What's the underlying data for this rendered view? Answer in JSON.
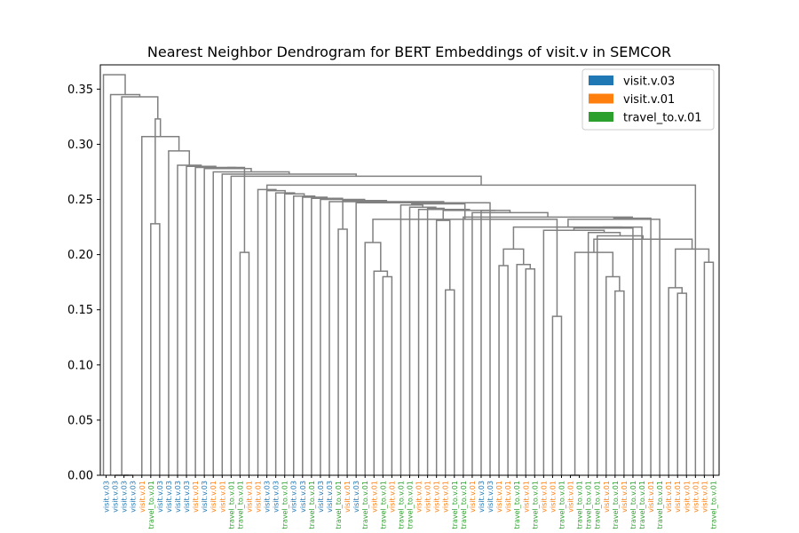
{
  "chart_data": {
    "type": "dendrogram",
    "title": "Nearest Neighbor Dendrogram for BERT Embeddings of visit.v in SEMCOR",
    "xlabel": "",
    "ylabel": "",
    "ylim": [
      0,
      0.372
    ],
    "yticks": [
      "0.00",
      "0.05",
      "0.10",
      "0.15",
      "0.20",
      "0.25",
      "0.30",
      "0.35"
    ],
    "ytick_values": [
      0,
      0.05,
      0.1,
      0.15,
      0.2,
      0.25,
      0.3,
      0.35
    ],
    "grid": false,
    "legend_position": "top-right",
    "legend": [
      {
        "name": "visit.v.03",
        "color": "#1f77b4"
      },
      {
        "name": "visit.v.01",
        "color": "#ff7f0e"
      },
      {
        "name": "travel_to.v.01",
        "color": "#2ca02c"
      }
    ],
    "link_color": "#808080",
    "leaves": [
      {
        "label": "visit.v.03",
        "sense": 0
      },
      {
        "label": "visit.v.03",
        "sense": 0
      },
      {
        "label": "visit.v.03",
        "sense": 0
      },
      {
        "label": "visit.v.03",
        "sense": 0
      },
      {
        "label": "visit.v.01",
        "sense": 1
      },
      {
        "label": "travel_to.v.01",
        "sense": 2
      },
      {
        "label": "visit.v.03",
        "sense": 0
      },
      {
        "label": "visit.v.03",
        "sense": 0
      },
      {
        "label": "visit.v.03",
        "sense": 0
      },
      {
        "label": "visit.v.03",
        "sense": 0
      },
      {
        "label": "visit.v.01",
        "sense": 1
      },
      {
        "label": "visit.v.03",
        "sense": 0
      },
      {
        "label": "visit.v.01",
        "sense": 1
      },
      {
        "label": "visit.v.01",
        "sense": 1
      },
      {
        "label": "travel_to.v.01",
        "sense": 2
      },
      {
        "label": "travel_to.v.01",
        "sense": 2
      },
      {
        "label": "visit.v.01",
        "sense": 1
      },
      {
        "label": "visit.v.01",
        "sense": 1
      },
      {
        "label": "visit.v.03",
        "sense": 0
      },
      {
        "label": "visit.v.03",
        "sense": 0
      },
      {
        "label": "travel_to.v.01",
        "sense": 2
      },
      {
        "label": "visit.v.03",
        "sense": 0
      },
      {
        "label": "visit.v.03",
        "sense": 0
      },
      {
        "label": "travel_to.v.01",
        "sense": 2
      },
      {
        "label": "visit.v.03",
        "sense": 0
      },
      {
        "label": "visit.v.03",
        "sense": 0
      },
      {
        "label": "travel_to.v.01",
        "sense": 2
      },
      {
        "label": "visit.v.01",
        "sense": 1
      },
      {
        "label": "visit.v.03",
        "sense": 0
      },
      {
        "label": "travel_to.v.01",
        "sense": 2
      },
      {
        "label": "visit.v.01",
        "sense": 1
      },
      {
        "label": "travel_to.v.01",
        "sense": 2
      },
      {
        "label": "visit.v.01",
        "sense": 1
      },
      {
        "label": "travel_to.v.01",
        "sense": 2
      },
      {
        "label": "travel_to.v.01",
        "sense": 2
      },
      {
        "label": "visit.v.01",
        "sense": 1
      },
      {
        "label": "visit.v.01",
        "sense": 1
      },
      {
        "label": "visit.v.01",
        "sense": 1
      },
      {
        "label": "visit.v.01",
        "sense": 1
      },
      {
        "label": "travel_to.v.01",
        "sense": 2
      },
      {
        "label": "travel_to.v.01",
        "sense": 2
      },
      {
        "label": "visit.v.01",
        "sense": 1
      },
      {
        "label": "visit.v.03",
        "sense": 0
      },
      {
        "label": "visit.v.03",
        "sense": 0
      },
      {
        "label": "visit.v.01",
        "sense": 1
      },
      {
        "label": "visit.v.01",
        "sense": 1
      },
      {
        "label": "travel_to.v.01",
        "sense": 2
      },
      {
        "label": "visit.v.01",
        "sense": 1
      },
      {
        "label": "travel_to.v.01",
        "sense": 2
      },
      {
        "label": "visit.v.01",
        "sense": 1
      },
      {
        "label": "visit.v.01",
        "sense": 1
      },
      {
        "label": "travel_to.v.01",
        "sense": 2
      },
      {
        "label": "visit.v.01",
        "sense": 1
      },
      {
        "label": "travel_to.v.01",
        "sense": 2
      },
      {
        "label": "travel_to.v.01",
        "sense": 2
      },
      {
        "label": "travel_to.v.01",
        "sense": 2
      },
      {
        "label": "visit.v.01",
        "sense": 1
      },
      {
        "label": "travel_to.v.01",
        "sense": 2
      },
      {
        "label": "visit.v.01",
        "sense": 1
      },
      {
        "label": "travel_to.v.01",
        "sense": 2
      },
      {
        "label": "travel_to.v.01",
        "sense": 2
      },
      {
        "label": "visit.v.01",
        "sense": 1
      },
      {
        "label": "travel_to.v.01",
        "sense": 2
      },
      {
        "label": "visit.v.01",
        "sense": 1
      },
      {
        "label": "visit.v.01",
        "sense": 1
      },
      {
        "label": "visit.v.01",
        "sense": 1
      },
      {
        "label": "visit.v.01",
        "sense": 1
      },
      {
        "label": "visit.v.01",
        "sense": 1
      },
      {
        "label": "travel_to.v.01",
        "sense": 2
      }
    ],
    "merges": [
      {
        "a": "L2",
        "b": "L3",
        "h": 0.0
      },
      {
        "a": "L1",
        "b": "M0",
        "h": 0.0
      },
      {
        "a": "L52",
        "b": "L53",
        "h": 0.0
      },
      {
        "a": "L50",
        "b": "L51",
        "h": 0.144
      },
      {
        "a": "L64",
        "b": "L65",
        "h": 0.165
      },
      {
        "a": "L38",
        "b": "L39",
        "h": 0.168
      },
      {
        "a": "L63",
        "b": "M4",
        "h": 0.17
      },
      {
        "a": "L57",
        "b": "L58",
        "h": 0.167
      },
      {
        "a": "L31",
        "b": "L32",
        "h": 0.18
      },
      {
        "a": "L56",
        "b": "M7",
        "h": 0.18
      },
      {
        "a": "L30",
        "b": "M8",
        "h": 0.185
      },
      {
        "a": "L47",
        "b": "L48",
        "h": 0.187
      },
      {
        "a": "L44",
        "b": "L45",
        "h": 0.19
      },
      {
        "a": "L46",
        "b": "M11",
        "h": 0.191
      },
      {
        "a": "L67",
        "b": "L68",
        "h": 0.193
      },
      {
        "a": "L15",
        "b": "L16",
        "h": 0.202
      },
      {
        "a": "M2",
        "b": "M9",
        "h": 0.202
      },
      {
        "a": "M6",
        "b": "M14",
        "h": 0.205
      },
      {
        "a": "M12",
        "b": "M13",
        "h": 0.205
      },
      {
        "a": "L29",
        "b": "M10",
        "h": 0.211
      },
      {
        "a": "M16",
        "b": "M17",
        "h": 0.214
      },
      {
        "a": "L55",
        "b": "M20",
        "h": 0.217
      },
      {
        "a": "L54",
        "b": "M21",
        "h": 0.22
      },
      {
        "a": "L26",
        "b": "L27",
        "h": 0.223
      },
      {
        "a": "L49",
        "b": "M22",
        "h": 0.222
      },
      {
        "a": "L37",
        "b": "M5",
        "h": 0.231
      },
      {
        "a": "L5",
        "b": "L6",
        "h": 0.228
      },
      {
        "a": "L59",
        "b": "M24",
        "h": 0.224
      },
      {
        "a": "L60",
        "b": "M27",
        "h": 0.225
      },
      {
        "a": "M18",
        "b": "M28",
        "h": 0.225
      },
      {
        "a": "M3",
        "b": "M19",
        "h": 0.232
      },
      {
        "a": "L62",
        "b": "M29",
        "h": 0.232
      },
      {
        "a": "L61",
        "b": "M31",
        "h": 0.233
      },
      {
        "a": "L40",
        "b": "M32",
        "h": 0.234
      },
      {
        "a": "L41",
        "b": "M33",
        "h": 0.238
      },
      {
        "a": "L42",
        "b": "M34",
        "h": 0.24
      },
      {
        "a": "M25",
        "b": "M35",
        "h": 0.24
      },
      {
        "a": "L35",
        "b": "M36",
        "h": 0.241
      },
      {
        "a": "L36",
        "b": "M37",
        "h": 0.242
      },
      {
        "a": "L34",
        "b": "M38",
        "h": 0.243
      },
      {
        "a": "L33",
        "b": "M39",
        "h": 0.245
      },
      {
        "a": "M30",
        "b": "M40",
        "h": 0.246
      },
      {
        "a": "L28",
        "b": "M41",
        "h": 0.247
      },
      {
        "a": "L43",
        "b": "M42",
        "h": 0.247
      },
      {
        "a": "L25",
        "b": "M43",
        "h": 0.248
      },
      {
        "a": "M23",
        "b": "M44",
        "h": 0.249
      },
      {
        "a": "L24",
        "b": "M45",
        "h": 0.25
      },
      {
        "a": "L23",
        "b": "M46",
        "h": 0.251
      },
      {
        "a": "L22",
        "b": "M47",
        "h": 0.252
      },
      {
        "a": "L21",
        "b": "M48",
        "h": 0.253
      },
      {
        "a": "L20",
        "b": "M49",
        "h": 0.255
      },
      {
        "a": "L19",
        "b": "M50",
        "h": 0.256
      },
      {
        "a": "L18",
        "b": "M51",
        "h": 0.258
      },
      {
        "a": "L17",
        "b": "M52",
        "h": 0.259
      },
      {
        "a": "L66",
        "b": "M53",
        "h": 0.263
      },
      {
        "a": "L14",
        "b": "M54",
        "h": 0.271
      },
      {
        "a": "L13",
        "b": "M55",
        "h": 0.273
      },
      {
        "a": "L12",
        "b": "M56",
        "h": 0.275
      },
      {
        "a": "L11",
        "b": "M57",
        "h": 0.278
      },
      {
        "a": "M15",
        "b": "M58",
        "h": 0.279
      },
      {
        "a": "L10",
        "b": "M59",
        "h": 0.279
      },
      {
        "a": "L9",
        "b": "M60",
        "h": 0.28
      },
      {
        "a": "L8",
        "b": "M61",
        "h": 0.281
      },
      {
        "a": "L7",
        "b": "M62",
        "h": 0.294
      },
      {
        "a": "L4",
        "b": "M63",
        "h": 0.307
      },
      {
        "a": "M26",
        "b": "M64",
        "h": 0.323
      },
      {
        "a": "M1",
        "b": "M65",
        "h": 0.343
      },
      {
        "a": "M66",
        "b": "L0",
        "h": 0.345
      },
      {
        "a": "L0b",
        "b": "M67",
        "h": 0.363
      }
    ]
  }
}
